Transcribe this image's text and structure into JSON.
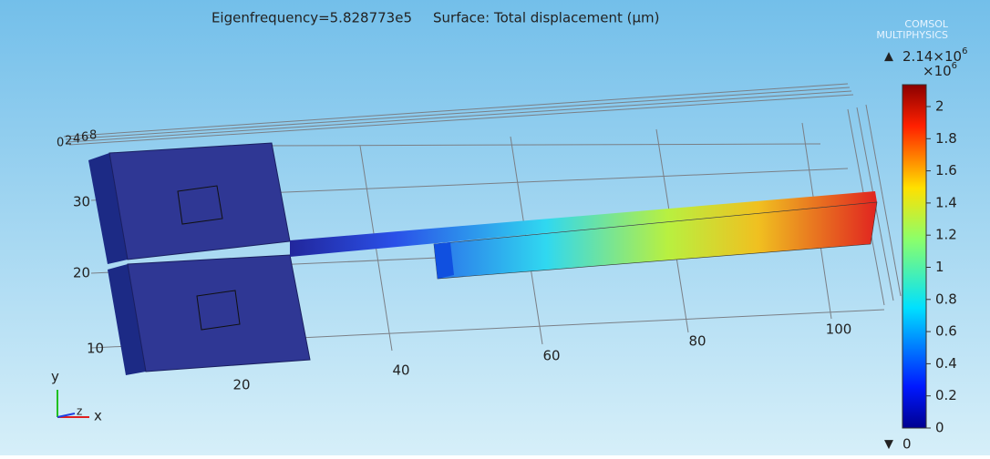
{
  "header": {
    "eigenfrequency": "Eigenfrequency=5.828773e5",
    "surface": "Surface: Total displacement (µm)"
  },
  "logo": {
    "line1": "COMSOL",
    "line2": "MULTIPHYSICS"
  },
  "colorbar": {
    "max_label": {
      "mantissa": "2.14×10",
      "exponent": "6"
    },
    "multiplier": {
      "base": "×10",
      "exponent": "6"
    },
    "min_label": "0",
    "ticks": [
      "0",
      "0.2",
      "0.4",
      "0.6",
      "0.8",
      "1",
      "1.2",
      "1.4",
      "1.6",
      "1.8",
      "2"
    ]
  },
  "axes": {
    "y_ticks": [
      "10",
      "20",
      "30"
    ],
    "x_ticks": [
      "20",
      "40",
      "60",
      "80",
      "100"
    ],
    "z_ticks": [
      "0",
      "2",
      "4",
      "6",
      "8"
    ]
  },
  "triad": {
    "y": "y",
    "z": "z",
    "x": "x"
  }
}
